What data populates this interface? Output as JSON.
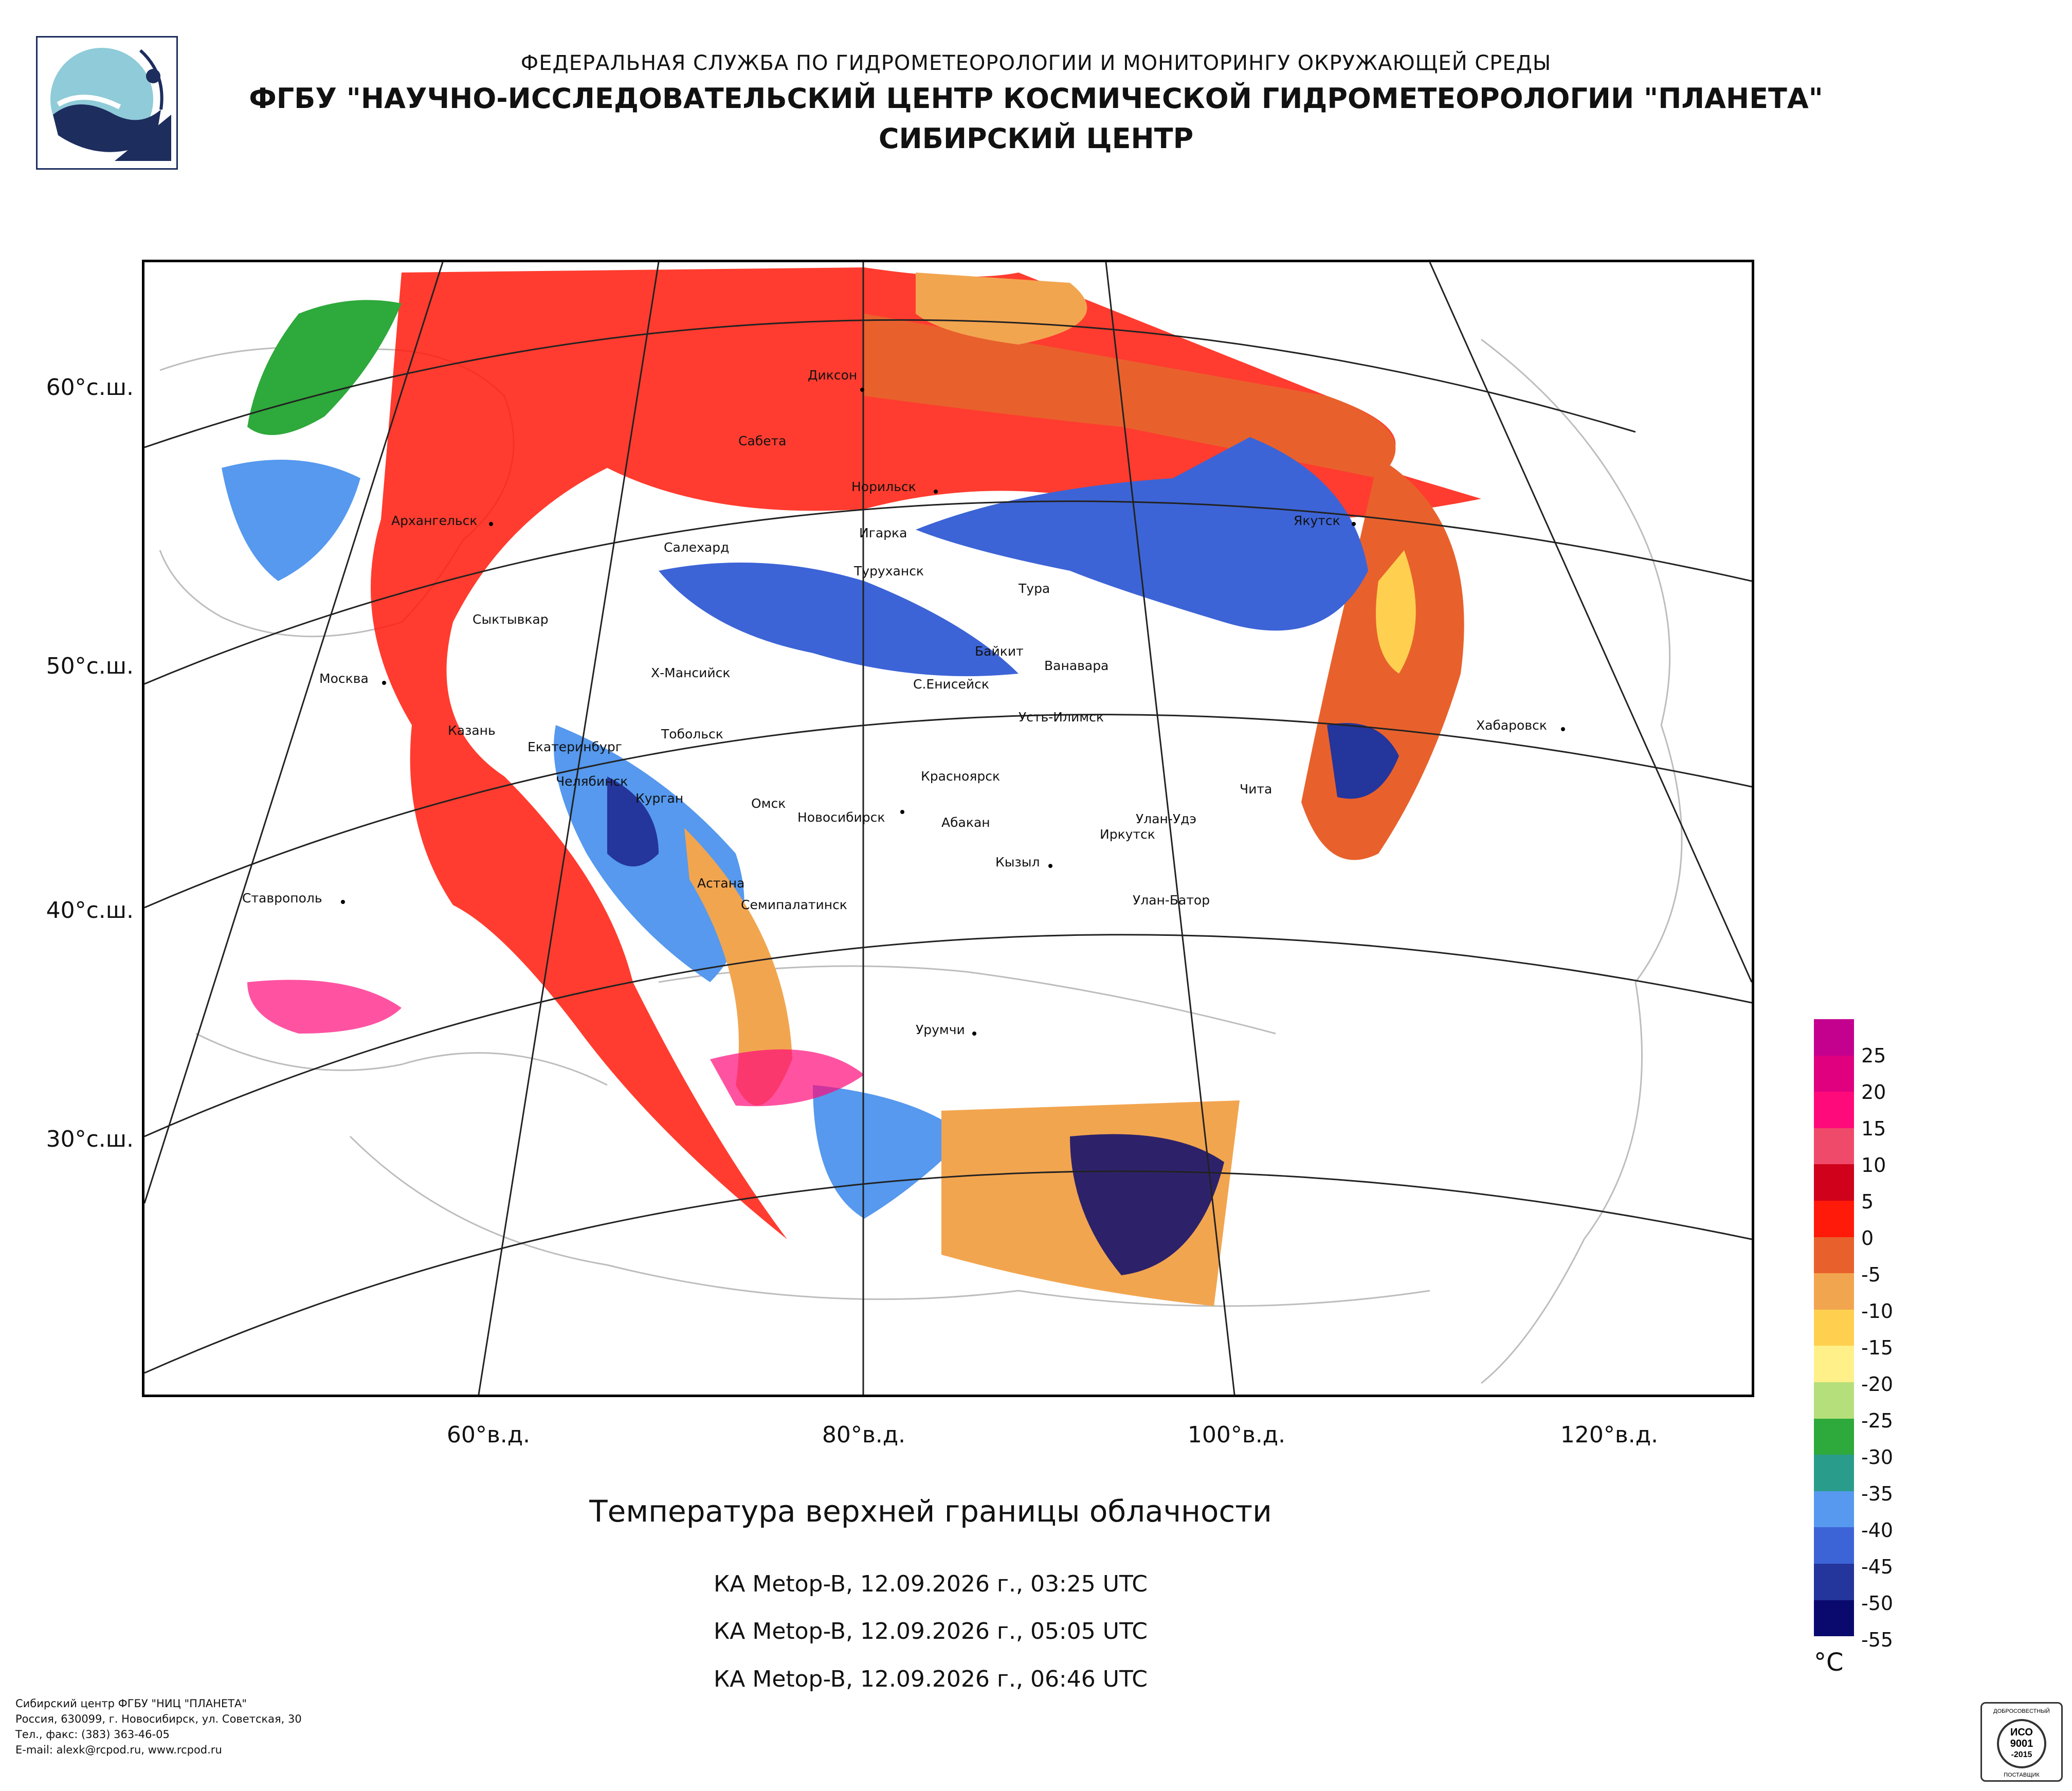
{
  "header": {
    "agency": "ФЕДЕРАЛЬНАЯ СЛУЖБА ПО ГИДРОМЕТЕОРОЛОГИИ И МОНИТОРИНГУ ОКРУЖАЮЩЕЙ СРЕДЫ",
    "institute": "ФГБУ \"НАУЧНО-ИССЛЕДОВАТЕЛЬСКИЙ ЦЕНТР КОСМИЧЕСКОЙ ГИДРОМЕТЕОРОЛОГИИ \"ПЛАНЕТА\"",
    "center": "СИБИРСКИЙ ЦЕНТР"
  },
  "map": {
    "lat_labels": [
      "60°с.ш.",
      "50°с.ш.",
      "40°с.ш.",
      "30°с.ш."
    ],
    "lon_labels": [
      "60°в.д.",
      "80°в.д.",
      "100°в.д.",
      "120°в.д."
    ],
    "cities": [
      "Диксон",
      "Сабета",
      "Норильск",
      "Игарка",
      "Салехард",
      "Туруханск",
      "Тура",
      "Якутск",
      "Архангельск",
      "Сыктывкар",
      "Байкит",
      "Ванавара",
      "Х-Мансийск",
      "С.Енисейск",
      "Москва",
      "Усть-Илимск",
      "Хабаровск",
      "Казань",
      "Тобольск",
      "Екатеринбург",
      "Челябинск",
      "Курган",
      "Омск",
      "Новосибирск",
      "Красноярск",
      "Абакан",
      "Чита",
      "Улан-Удэ",
      "Иркутск",
      "Кызыл",
      "Астана",
      "Семипалатинск",
      "Улан-Батор",
      "Ставрополь",
      "Урумчи"
    ]
  },
  "title": "Температура верхней границы облачности",
  "passes": [
    "КА Metop-B, 12.09.2026 г., 03:25 UTC",
    "КА Metop-B, 12.09.2026 г., 05:05 UTC",
    "КА Metop-B, 12.09.2026 г., 06:46 UTC"
  ],
  "legend": {
    "unit": "°C",
    "labels": [
      "25",
      "20",
      "15",
      "10",
      "5",
      "0",
      "-5",
      "-10",
      "-15",
      "-20",
      "-25",
      "-30",
      "-35",
      "-40",
      "-45",
      "-50",
      "-55"
    ],
    "colors": [
      "#c4008f",
      "#e0007f",
      "#ff0a7a",
      "#f04a6a",
      "#d0021b",
      "#ff1a0a",
      "#e8612c",
      "#f2a54f",
      "#ffd050",
      "#fff08a",
      "#b5df7a",
      "#2ea93b",
      "#2a9c8c",
      "#5699ee",
      "#3d64d6",
      "#24359c",
      "#0a0a6e"
    ]
  },
  "footer": {
    "lines": [
      "Сибирский центр ФГБУ \"НИЦ \"ПЛАНЕТА\"",
      "Россия, 630099, г. Новосибирск, ул. Советская, 30",
      "Тел., факс: (383) 363-46-05",
      "E-mail: alexk@rcpod.ru, www.rcpod.ru"
    ]
  },
  "iso_badge": {
    "top": "ДОБРОСОВЕСТНЫЙ",
    "std": "ИСО",
    "num": "9001",
    "year": "-2015",
    "bottom": "ПОСТАВЩИК"
  }
}
